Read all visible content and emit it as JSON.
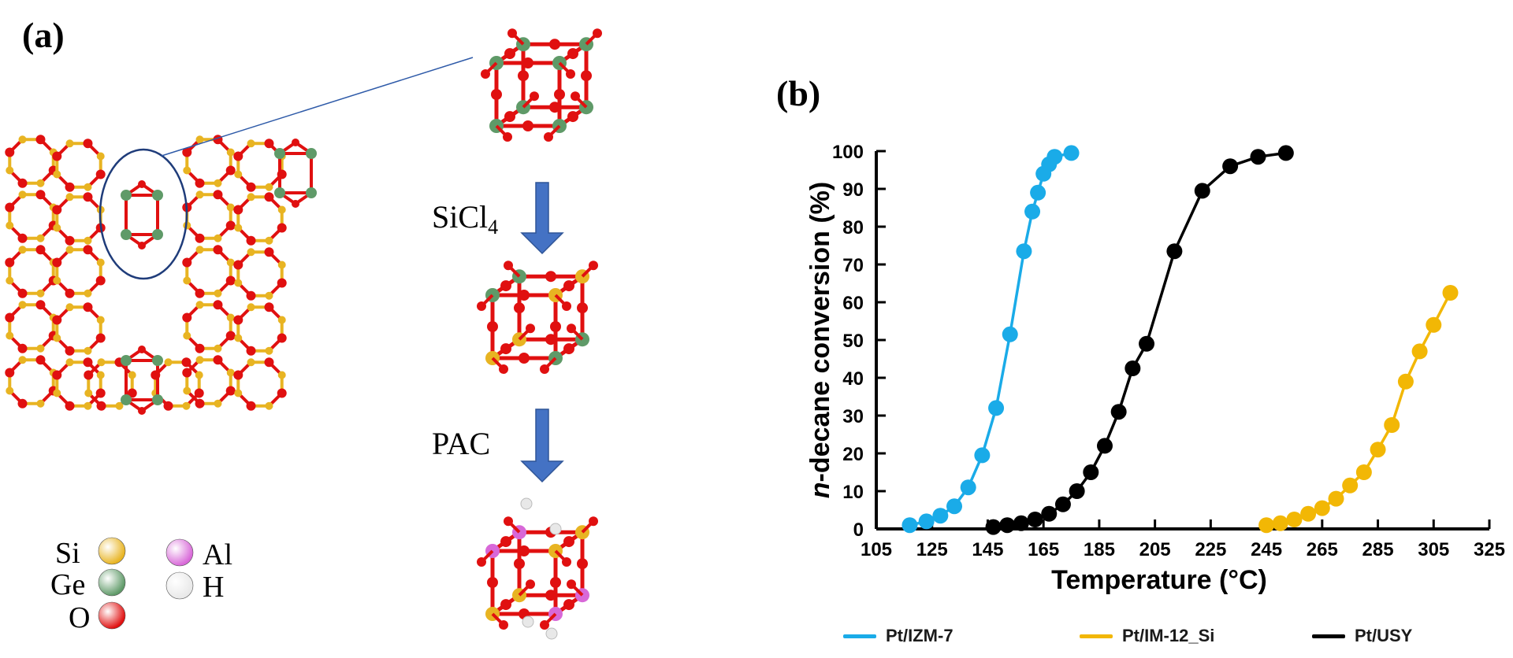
{
  "panel_a": {
    "label": "(a)",
    "step1": {
      "text": "SiCl",
      "sub": "4"
    },
    "step2": {
      "text": "PAC"
    },
    "legend": [
      {
        "symbol": "Si",
        "color": "#e8b422"
      },
      {
        "symbol": "Ge",
        "color": "#5f9a68"
      },
      {
        "symbol": "O",
        "color": "#e01010"
      },
      {
        "symbol": "Al",
        "color": "#d868d8"
      },
      {
        "symbol": "H",
        "color": "#e8e8e8"
      }
    ],
    "colors": {
      "bond_o": "#e01010",
      "bond_si": "#e8b422",
      "ge": "#5f9a68",
      "arrow": "#4472c4",
      "ellipse": "#1f3c7a"
    }
  },
  "chart_data": {
    "type": "scatter",
    "label": "(b)",
    "xlabel": "Temperature (°C)",
    "ylabel_italic": "n",
    "ylabel_rest": "-decane conversion (%)",
    "xlim": [
      105,
      325
    ],
    "ylim": [
      0,
      100
    ],
    "x_ticks": [
      "105",
      "125",
      "145",
      "165",
      "185",
      "205",
      "225",
      "245",
      "265",
      "285",
      "305",
      "325"
    ],
    "y_ticks": [
      "0",
      "10",
      "20",
      "30",
      "40",
      "50",
      "60",
      "70",
      "80",
      "90",
      "100"
    ],
    "legend_position": "bottom",
    "series": [
      {
        "name": "Pt/IZM-7",
        "color": "#1aabe8",
        "points": [
          [
            117,
            1
          ],
          [
            123,
            2
          ],
          [
            128,
            3.5
          ],
          [
            133,
            6
          ],
          [
            138,
            11
          ],
          [
            143,
            19.5
          ],
          [
            148,
            32
          ],
          [
            153,
            51.5
          ],
          [
            158,
            73.5
          ],
          [
            161,
            84
          ],
          [
            163,
            89
          ],
          [
            165,
            94
          ],
          [
            167,
            96.5
          ],
          [
            169,
            98.5
          ],
          [
            175,
            99.5
          ]
        ]
      },
      {
        "name": "Pt/IM-12_Si",
        "color": "#f2b705",
        "points": [
          [
            245,
            1
          ],
          [
            250,
            1.5
          ],
          [
            255,
            2.5
          ],
          [
            260,
            4
          ],
          [
            265,
            5.5
          ],
          [
            270,
            8
          ],
          [
            275,
            11.5
          ],
          [
            280,
            15
          ],
          [
            285,
            21
          ],
          [
            290,
            27.5
          ],
          [
            295,
            39
          ],
          [
            300,
            47
          ],
          [
            305,
            54
          ],
          [
            311,
            62.5
          ]
        ]
      },
      {
        "name": "Pt/USY",
        "color": "#000000",
        "points": [
          [
            147,
            0.5
          ],
          [
            152,
            1
          ],
          [
            157,
            1.5
          ],
          [
            162,
            2.5
          ],
          [
            167,
            4
          ],
          [
            172,
            6.5
          ],
          [
            177,
            10
          ],
          [
            182,
            15
          ],
          [
            187,
            22
          ],
          [
            192,
            31
          ],
          [
            197,
            42.5
          ],
          [
            202,
            49
          ],
          [
            212,
            73.5
          ],
          [
            222,
            89.5
          ],
          [
            232,
            96
          ],
          [
            242,
            98.5
          ],
          [
            252,
            99.5
          ]
        ]
      }
    ]
  }
}
